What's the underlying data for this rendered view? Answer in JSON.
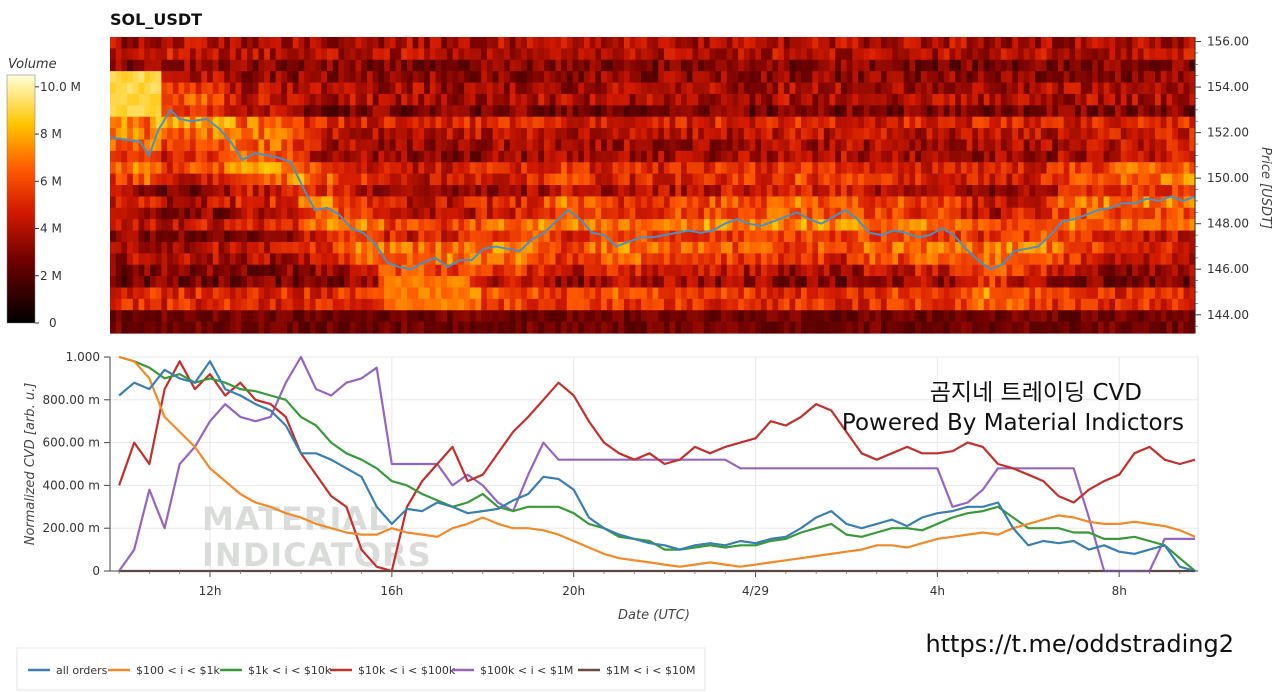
{
  "colors": {
    "all_orders": "#3a7fb0",
    "r100_1k": "#f0892a",
    "r1k_10k": "#3a9a3a",
    "r10k_100k": "#c0302c",
    "r100k_1M": "#9566c0",
    "r1M_10M": "#6b4a45",
    "price_line": "#4f8fbf"
  },
  "chart_data": [
    {
      "type": "heatmap",
      "title": "SOL_USDT",
      "ylabel": "Price [USDT]",
      "ylim": [
        143.2,
        156.2
      ],
      "y_ticks": [
        "156.00",
        "154.00",
        "152.00",
        "150.00",
        "148.00",
        "146.00",
        "144.00"
      ],
      "colorbar": {
        "label": "Volume",
        "ticks": [
          "10.0 M",
          "8 M",
          "6 M",
          "4 M",
          "2 M",
          "0"
        ],
        "range": [
          0,
          10.5
        ]
      },
      "price_series": {
        "name": "Price",
        "t": [
          0,
          0.5,
          1,
          1.3,
          1.6,
          2,
          2.3,
          2.7,
          3.2,
          3.6,
          4,
          4.4,
          4.8,
          5.2,
          5.6,
          6,
          6.4,
          6.8,
          7.2,
          7.6,
          8,
          8.4,
          8.8,
          9.2,
          9.6,
          10,
          10.4,
          10.8,
          11.2,
          11.6,
          12,
          12.4,
          12.8,
          13.2,
          13.6,
          14,
          14.4,
          14.8,
          15.2,
          15.6,
          16,
          16.4,
          16.8,
          17.2,
          17.6,
          18,
          18.4,
          18.8,
          19.2,
          19.6,
          20,
          20.4,
          20.8,
          21.2,
          21.6,
          22,
          22.4,
          22.8,
          23.2,
          23.6,
          24,
          24.4,
          24.8,
          25.2,
          25.6,
          26,
          26.4,
          26.8,
          27.2,
          27.6,
          28,
          28.4,
          28.8,
          29.2,
          29.6,
          30,
          30.4,
          30.8,
          31.2,
          31.6,
          32,
          32.4,
          32.8,
          33.2,
          33.6,
          34,
          34.4,
          34.8,
          35.2,
          35.6,
          36
        ],
        "price": [
          151.8,
          151.7,
          151.6,
          151.0,
          152.1,
          153.0,
          152.6,
          152.5,
          152.6,
          152.2,
          151.6,
          150.8,
          151.1,
          151.0,
          150.9,
          150.7,
          149.6,
          148.6,
          148.7,
          148.4,
          147.8,
          147.6,
          147.1,
          146.3,
          146.1,
          146.0,
          146.3,
          146.5,
          146.1,
          146.4,
          146.4,
          146.9,
          147.0,
          146.9,
          146.8,
          147.3,
          147.6,
          148.1,
          148.6,
          148.2,
          147.6,
          147.5,
          147.0,
          147.2,
          147.4,
          147.4,
          147.5,
          147.6,
          147.7,
          147.6,
          147.7,
          148.0,
          148.2,
          148.0,
          147.9,
          148.1,
          148.3,
          148.5,
          148.2,
          148.0,
          148.3,
          148.6,
          148.2,
          147.6,
          147.5,
          147.7,
          147.6,
          147.4,
          147.5,
          147.8,
          147.5,
          146.9,
          146.4,
          146.0,
          146.2,
          146.8,
          146.9,
          147.0,
          147.5,
          148.1,
          148.2,
          148.4,
          148.6,
          148.7,
          148.9,
          148.9,
          149.1,
          149.0,
          149.2,
          149.0,
          149.2
        ]
      }
    },
    {
      "type": "line",
      "xlabel": "Date (UTC)",
      "ylabel": "Normalized CVD [arb. u.]",
      "ylim": [
        0,
        1.0
      ],
      "y_ticks": [
        "1.000",
        "800.00 m",
        "600.00 m",
        "400.00 m",
        "200.00 m",
        "0"
      ],
      "x_ticks": [
        {
          "t": 3,
          "label": "12h"
        },
        {
          "t": 9,
          "label": "16h"
        },
        {
          "t": 15,
          "label": "20h"
        },
        {
          "t": 21,
          "label": "4/29"
        },
        {
          "t": 27,
          "label": "4h"
        },
        {
          "t": 33,
          "label": "8h"
        }
      ],
      "xlim": [
        -0.3,
        35.6
      ],
      "x": [
        0,
        0.5,
        1,
        1.5,
        2,
        2.5,
        3,
        3.5,
        4,
        4.5,
        5,
        5.5,
        6,
        6.5,
        7,
        7.5,
        8,
        8.5,
        9,
        9.5,
        10,
        10.5,
        11,
        11.5,
        12,
        12.5,
        13,
        13.5,
        14,
        14.5,
        15,
        15.5,
        16,
        16.5,
        17,
        17.5,
        18,
        18.5,
        19,
        19.5,
        20,
        20.5,
        21,
        21.5,
        22,
        22.5,
        23,
        23.5,
        24,
        24.5,
        25,
        25.5,
        26,
        26.5,
        27,
        27.5,
        28,
        28.5,
        29,
        29.5,
        30,
        30.5,
        31,
        31.5,
        32,
        32.5,
        33,
        33.5,
        34,
        34.5,
        35,
        35.5
      ],
      "series": [
        {
          "name": "all orders",
          "color_key": "all_orders",
          "values": [
            0.82,
            0.88,
            0.85,
            0.94,
            0.9,
            0.88,
            0.98,
            0.85,
            0.82,
            0.78,
            0.75,
            0.68,
            0.55,
            0.55,
            0.52,
            0.48,
            0.44,
            0.3,
            0.22,
            0.29,
            0.28,
            0.32,
            0.3,
            0.27,
            0.28,
            0.29,
            0.33,
            0.36,
            0.44,
            0.43,
            0.38,
            0.25,
            0.2,
            0.17,
            0.15,
            0.13,
            0.12,
            0.1,
            0.12,
            0.13,
            0.12,
            0.14,
            0.13,
            0.15,
            0.16,
            0.2,
            0.25,
            0.28,
            0.22,
            0.2,
            0.22,
            0.24,
            0.21,
            0.25,
            0.27,
            0.28,
            0.3,
            0.3,
            0.32,
            0.2,
            0.12,
            0.14,
            0.13,
            0.14,
            0.1,
            0.12,
            0.09,
            0.08,
            0.1,
            0.12,
            0.02,
            0.0
          ]
        },
        {
          "name": "$100 < i < $1k",
          "color_key": "r100_1k",
          "values": [
            1.0,
            0.98,
            0.9,
            0.72,
            0.65,
            0.58,
            0.48,
            0.42,
            0.36,
            0.32,
            0.3,
            0.27,
            0.25,
            0.22,
            0.2,
            0.18,
            0.17,
            0.17,
            0.2,
            0.18,
            0.17,
            0.16,
            0.2,
            0.22,
            0.25,
            0.22,
            0.2,
            0.2,
            0.19,
            0.17,
            0.14,
            0.11,
            0.08,
            0.06,
            0.05,
            0.04,
            0.03,
            0.02,
            0.03,
            0.04,
            0.03,
            0.02,
            0.03,
            0.04,
            0.05,
            0.06,
            0.07,
            0.08,
            0.09,
            0.1,
            0.12,
            0.12,
            0.11,
            0.13,
            0.15,
            0.16,
            0.17,
            0.18,
            0.17,
            0.2,
            0.22,
            0.24,
            0.26,
            0.25,
            0.23,
            0.22,
            0.22,
            0.23,
            0.22,
            0.21,
            0.19,
            0.16
          ]
        },
        {
          "name": "$1k < i < $10k",
          "color_key": "r1k_10k",
          "values": [
            1.0,
            0.98,
            0.95,
            0.9,
            0.92,
            0.88,
            0.9,
            0.88,
            0.85,
            0.84,
            0.82,
            0.8,
            0.72,
            0.68,
            0.6,
            0.55,
            0.52,
            0.48,
            0.42,
            0.4,
            0.36,
            0.33,
            0.3,
            0.32,
            0.36,
            0.3,
            0.28,
            0.3,
            0.3,
            0.3,
            0.27,
            0.22,
            0.2,
            0.16,
            0.15,
            0.14,
            0.1,
            0.1,
            0.11,
            0.12,
            0.11,
            0.12,
            0.12,
            0.14,
            0.15,
            0.18,
            0.2,
            0.22,
            0.17,
            0.16,
            0.18,
            0.2,
            0.2,
            0.19,
            0.22,
            0.25,
            0.27,
            0.28,
            0.3,
            0.25,
            0.2,
            0.2,
            0.2,
            0.18,
            0.18,
            0.15,
            0.15,
            0.16,
            0.14,
            0.12,
            0.06,
            0.0
          ]
        },
        {
          "name": "$10k < i < $100k",
          "color_key": "r10k_100k",
          "values": [
            0.4,
            0.6,
            0.5,
            0.85,
            0.98,
            0.85,
            0.92,
            0.82,
            0.88,
            0.8,
            0.78,
            0.72,
            0.55,
            0.45,
            0.35,
            0.3,
            0.1,
            0.02,
            0.0,
            0.3,
            0.42,
            0.5,
            0.58,
            0.42,
            0.45,
            0.55,
            0.65,
            0.72,
            0.8,
            0.88,
            0.82,
            0.7,
            0.6,
            0.55,
            0.52,
            0.55,
            0.5,
            0.52,
            0.58,
            0.55,
            0.58,
            0.6,
            0.62,
            0.7,
            0.68,
            0.72,
            0.78,
            0.75,
            0.65,
            0.55,
            0.52,
            0.55,
            0.58,
            0.55,
            0.55,
            0.56,
            0.6,
            0.58,
            0.5,
            0.48,
            0.45,
            0.42,
            0.35,
            0.32,
            0.38,
            0.42,
            0.45,
            0.55,
            0.58,
            0.52,
            0.5,
            0.52
          ]
        },
        {
          "name": "$100k < i < $1M",
          "color_key": "r100k_1M",
          "values": [
            0.0,
            0.1,
            0.38,
            0.2,
            0.5,
            0.58,
            0.7,
            0.78,
            0.72,
            0.7,
            0.72,
            0.88,
            1.0,
            0.85,
            0.82,
            0.88,
            0.9,
            0.95,
            0.5,
            0.5,
            0.5,
            0.5,
            0.4,
            0.45,
            0.4,
            0.32,
            0.28,
            0.45,
            0.6,
            0.52,
            0.52,
            0.52,
            0.52,
            0.52,
            0.52,
            0.52,
            0.52,
            0.52,
            0.52,
            0.52,
            0.52,
            0.48,
            0.48,
            0.48,
            0.48,
            0.48,
            0.48,
            0.48,
            0.48,
            0.48,
            0.48,
            0.48,
            0.48,
            0.48,
            0.48,
            0.3,
            0.32,
            0.38,
            0.48,
            0.48,
            0.48,
            0.48,
            0.48,
            0.48,
            0.25,
            0.0,
            0.0,
            0.0,
            0.0,
            0.15,
            0.15,
            0.15
          ]
        },
        {
          "name": "$1M < i < $10M",
          "color_key": "r1M_10M",
          "values": [
            0.0,
            0.0,
            0.0,
            0.0,
            0.0,
            0.0,
            0.0,
            0.0,
            0.0,
            0.0,
            0.0,
            0.0,
            0.0,
            0.0,
            0.0,
            0.0,
            0.0,
            0.0,
            0.0,
            0.0,
            0.0,
            0.0,
            0.0,
            0.0,
            0.0,
            0.0,
            0.0,
            0.0,
            0.0,
            0.0,
            0.0,
            0.0,
            0.0,
            0.0,
            0.0,
            0.0,
            0.0,
            0.0,
            0.0,
            0.0,
            0.0,
            0.0,
            0.0,
            0.0,
            0.0,
            0.0,
            0.0,
            0.0,
            0.0,
            0.0,
            0.0,
            0.0,
            0.0,
            0.0,
            0.0,
            0.0,
            0.0,
            0.0,
            0.0,
            0.0,
            0.0,
            0.0,
            0.0,
            0.0,
            0.0,
            0.0,
            0.0,
            0.0,
            0.0,
            0.0,
            0.0,
            0.0
          ]
        }
      ],
      "legend_position": "bottom-left"
    }
  ],
  "overlay": {
    "line1": "곰지네 트레이딩 CVD",
    "line2": "Powered By Material Indictors",
    "link": "https://t.me/oddstrading2",
    "watermark_line1": "MATERIAL",
    "watermark_line2": "INDICATORS"
  }
}
